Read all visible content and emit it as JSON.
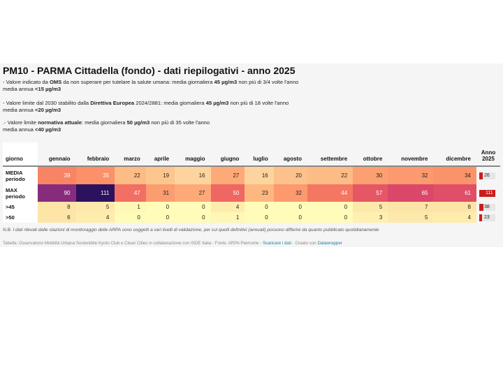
{
  "title": "PM10 - PARMA Cittadella (fondo) - dati riepilogativi - anno 2025",
  "notes": [
    {
      "line1_parts": [
        "- Valore indicato da ",
        "OMS",
        " da non superare per tutelare la salute umana: media giornaliera ",
        "45 µg/m3",
        " non più di 3/4 volte l'anno"
      ],
      "line2_parts": [
        "media annua ",
        "<15 µg/m3"
      ]
    },
    {
      "line1_parts": [
        "- Valore limite dal 2030 stabilito dalla ",
        "Direttiva Europea",
        " 2024/2881: media giornaliera ",
        "45 µg/m3",
        " non più di 18 volte l'anno"
      ],
      "line2_parts": [
        "media annua ",
        "<20 µg/m3"
      ]
    },
    {
      "line1_parts": [
        ".- Valore limite ",
        "normativa attuale",
        ": media giornaliera ",
        "50 µg/m3",
        " non più di 35 volte l'anno"
      ],
      "line2_parts": [
        "media annua ",
        "<40 µg/m3"
      ]
    }
  ],
  "chart_data": {
    "type": "table",
    "title": "PM10 - PARMA Cittadella (fondo) - dati riepilogativi - anno 2025",
    "columns": [
      "giorno",
      "gennaio",
      "febbraio",
      "marzo",
      "aprile",
      "maggio",
      "giugno",
      "luglio",
      "agosto",
      "settembre",
      "ottobre",
      "novembre",
      "dicembre",
      "Anno 2025"
    ],
    "rows": [
      {
        "label": "MEDIA periodo",
        "values": [
          39,
          35,
          22,
          19,
          16,
          27,
          16,
          20,
          22,
          30,
          32,
          34
        ],
        "anno": 26
      },
      {
        "label": "MAX periodo",
        "values": [
          90,
          111,
          47,
          31,
          27,
          50,
          23,
          32,
          44,
          57,
          65,
          61
        ],
        "anno": 111
      },
      {
        "label": ">45",
        "values": [
          8,
          5,
          1,
          0,
          0,
          4,
          0,
          0,
          0,
          5,
          7,
          8
        ],
        "anno": 38
      },
      {
        "label": ">50",
        "values": [
          6,
          4,
          0,
          0,
          0,
          1,
          0,
          0,
          0,
          3,
          5,
          4
        ],
        "anno": 23
      }
    ],
    "anno_bar_max": 111,
    "heatmap_colors": {
      "count_scale": [
        "#fffbb8",
        "#fde5a8"
      ],
      "value_scale": [
        "#fdd49e",
        "#fdb47d",
        "#fb8d67",
        "#f06a63",
        "#de4968",
        "#c3386f",
        "#712781",
        "#2c115f"
      ]
    },
    "bar_color": "#c71e1d"
  },
  "footer": {
    "nb": "N.B. I dati rilevati dalle stazioni di monitoraggio delle ARPA sono soggetti a vari livelli di validazione, per cui quelli definitivi (annuali) possono differire da quanto pubblicato quotidianamente",
    "credits_prefix": "Tabella: Osservatorio Mobilità Urbana Sostenibile Kyoto Club e Clean Cities in collaborazione con ISDE Italia - Fonte: ARPA Piemonte - ",
    "download_link": "Scaricare i dati",
    "credits_mid": " - Creato con ",
    "datawrapper_link": "Datawrapper"
  }
}
